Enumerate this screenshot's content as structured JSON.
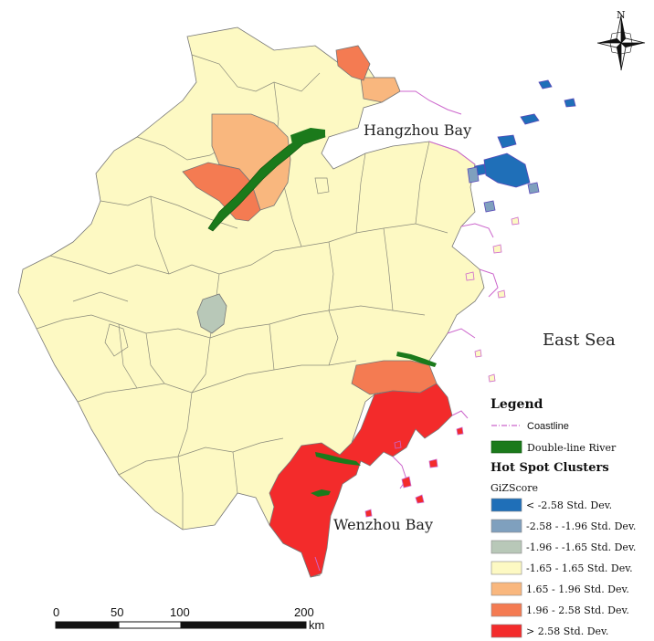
{
  "labels": {
    "hangzhou_bay": "Hangzhou Bay",
    "east_sea": "East Sea",
    "wenzhou_bay": "Wenzhou Bay",
    "north": "N"
  },
  "legend": {
    "title": "Legend",
    "coastline": "Coastline",
    "river": "Double-line River",
    "clusters_title": "Hot Spot Clusters",
    "field": "GiZScore",
    "classes": [
      {
        "label": "< -2.58 Std. Dev.",
        "color": "#1f6fb8"
      },
      {
        "label": "-2.58 - -1.96 Std. Dev.",
        "color": "#7fa0be"
      },
      {
        "label": "-1.96 - -1.65 Std. Dev.",
        "color": "#b8c8b8"
      },
      {
        "label": "-1.65 - 1.65 Std. Dev.",
        "color": "#fdf9c3"
      },
      {
        "label": "1.65 - 1.96 Std. Dev.",
        "color": "#f9b77e"
      },
      {
        "label": "1.96 - 2.58 Std. Dev.",
        "color": "#f47b52"
      },
      {
        "label": "> 2.58 Std. Dev.",
        "color": "#f32b2b"
      }
    ]
  },
  "scale": {
    "ticks": [
      "0",
      "50",
      "100",
      "200"
    ],
    "unit": "km"
  },
  "colors": {
    "coastline": "#cc66cc",
    "river": "#1b7a1b",
    "border": "#777777"
  }
}
